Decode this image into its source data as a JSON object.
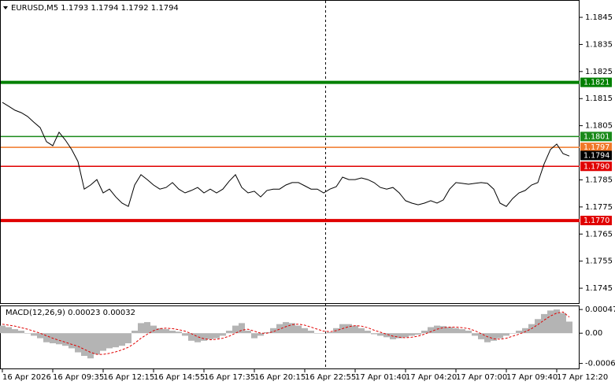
{
  "chart_data": [
    {
      "type": "line",
      "title": "EURUSD,M5  1.1793 1.1794 1.1792 1.1794",
      "color": "#000000",
      "categories": [
        "16 Apr 2026",
        null,
        null,
        null,
        null,
        null,
        null,
        null,
        "16 Apr 09:35",
        null,
        null,
        null,
        null,
        null,
        null,
        null,
        "16 Apr 12:15",
        null,
        null,
        null,
        null,
        null,
        null,
        null,
        "16 Apr 14:55",
        null,
        null,
        null,
        null,
        null,
        null,
        null,
        "16 Apr 17:35",
        null,
        null,
        null,
        null,
        null,
        null,
        null,
        "16 Apr 20:15",
        null,
        null,
        null,
        null,
        null,
        null,
        null,
        "16 Apr 22:55",
        null,
        null,
        null,
        null,
        null,
        null,
        null,
        "17 Apr 01:40",
        null,
        null,
        null,
        null,
        null,
        null,
        null,
        "17 Apr 04:20",
        null,
        null,
        null,
        null,
        null,
        null,
        null,
        "17 Apr 07:00",
        null,
        null,
        null,
        null,
        null,
        null,
        null,
        "17 Apr 09:40",
        null,
        null,
        null,
        null,
        null,
        null,
        null,
        "17 Apr 12:20",
        null,
        null
      ],
      "values": [
        1.18136,
        1.18122,
        1.18107,
        1.18098,
        1.18084,
        1.18063,
        1.18043,
        1.17991,
        1.17976,
        1.18026,
        1.17997,
        1.17962,
        1.17918,
        1.17816,
        1.17831,
        1.17851,
        1.17802,
        1.17816,
        1.17787,
        1.17764,
        1.17752,
        1.17831,
        1.17869,
        1.17851,
        1.17831,
        1.17816,
        1.17822,
        1.1784,
        1.17816,
        1.17802,
        1.17811,
        1.17822,
        1.17802,
        1.17816,
        1.17802,
        1.17816,
        1.17845,
        1.17869,
        1.17822,
        1.17802,
        1.17808,
        1.17787,
        1.17811,
        1.17816,
        1.17816,
        1.17831,
        1.1784,
        1.1784,
        1.17828,
        1.17816,
        1.17816,
        1.17802,
        1.17816,
        1.17825,
        1.1786,
        1.17851,
        1.17851,
        1.17857,
        1.17851,
        1.1784,
        1.17822,
        1.17816,
        1.17822,
        1.17802,
        1.17773,
        1.17764,
        1.17758,
        1.17764,
        1.17773,
        1.17764,
        1.17776,
        1.17816,
        1.1784,
        1.17837,
        1.17834,
        1.17837,
        1.1784,
        1.17837,
        1.17816,
        1.17764,
        1.17752,
        1.17781,
        1.17802,
        1.17811,
        1.17831,
        1.1784,
        1.17909,
        1.17962,
        1.17982,
        1.17947,
        1.17938
      ],
      "ylim": [
        1.17395,
        1.18514
      ],
      "yticks": [
        1.1845,
        1.1835,
        1.1825,
        1.1815,
        1.1805,
        1.1785,
        1.1775,
        1.1765,
        1.1755,
        1.1745
      ],
      "levels": [
        {
          "value": 1.1821,
          "label": "1.1821",
          "color": "#008000"
        },
        {
          "value": 1.1801,
          "label": "1.1801",
          "color": "#1a8a1a"
        },
        {
          "value": 1.1797,
          "label": "1.1797",
          "color": "#f07828"
        },
        {
          "value": 1.179,
          "label": "1.1790",
          "color": "#e00000"
        },
        {
          "value": 1.177,
          "label": "1.1770",
          "color": "#e00000"
        }
      ],
      "last_price": 1.1794
    },
    {
      "type": "macd",
      "title": "MACD(12,26,9) 0.00023 0.00032",
      "series": [
        {
          "name": "MACD",
          "color": "#b4b4b4",
          "values": [
            0.00015,
            0.00012,
            8e-05,
            5e-05,
            0,
            -5e-05,
            -0.0001,
            -0.00018,
            -0.0002,
            -0.00022,
            -0.00025,
            -0.0003,
            -0.00038,
            -0.00045,
            -0.0005,
            -0.00042,
            -0.00035,
            -0.0003,
            -0.00028,
            -0.00025,
            -0.0002,
            5e-05,
            0.0002,
            0.00022,
            0.00015,
            0.0001,
            8e-05,
            5e-05,
            3e-05,
            -5e-05,
            -0.00015,
            -0.00018,
            -0.00015,
            -0.00012,
            -0.0001,
            -5e-05,
            5e-05,
            0.00015,
            0.0002,
            5e-05,
            -0.0001,
            -5e-05,
            2e-05,
            0.0001,
            0.00018,
            0.00022,
            0.0002,
            0.00015,
            0.0001,
            5e-05,
            0,
            0,
            2e-05,
            0.0001,
            0.00018,
            0.00018,
            0.00015,
            0.0001,
            5e-05,
            -2e-05,
            -5e-05,
            -8e-05,
            -0.00012,
            -0.0001,
            -8e-05,
            -5e-05,
            -3e-05,
            5e-05,
            0.00012,
            0.00015,
            0.00014,
            0.00012,
            0.0001,
            8e-05,
            5e-05,
            -5e-05,
            -0.00012,
            -0.00018,
            -0.00015,
            -0.0001,
            -5e-05,
            0,
            5e-05,
            0.0001,
            0.00018,
            0.00028,
            0.00038,
            0.00045,
            0.00047,
            0.0004,
            0.00023
          ]
        },
        {
          "name": "Signal",
          "color": "#e00000",
          "values": [
            0.00018,
            0.00016,
            0.00014,
            0.00011,
            8e-05,
            4e-05,
            0,
            -5e-05,
            -0.0001,
            -0.00014,
            -0.00018,
            -0.00022,
            -0.00026,
            -0.00032,
            -0.00038,
            -0.00042,
            -0.00042,
            -0.0004,
            -0.00037,
            -0.00033,
            -0.00028,
            -0.0002,
            -0.0001,
            -2e-05,
            5e-05,
            9e-05,
            0.0001,
            9e-05,
            7e-05,
            4e-05,
            -1e-05,
            -7e-05,
            -0.00011,
            -0.00013,
            -0.00012,
            -0.0001,
            -6e-05,
            0,
            6e-05,
            8e-05,
            4e-05,
            0,
            0,
            3e-05,
            8e-05,
            0.00013,
            0.00017,
            0.00018,
            0.00016,
            0.00012,
            8e-05,
            4e-05,
            3e-05,
            5e-05,
            9e-05,
            0.00013,
            0.00015,
            0.00014,
            0.00011,
            6e-05,
            2e-05,
            -2e-05,
            -6e-05,
            -8e-05,
            -9e-05,
            -8e-05,
            -6e-05,
            -2e-05,
            3e-05,
            8e-05,
            0.00011,
            0.00012,
            0.00012,
            0.00011,
            9e-05,
            5e-05,
            -1e-05,
            -7e-05,
            -0.00011,
            -0.00012,
            -0.0001,
            -6e-05,
            -2e-05,
            3e-05,
            9e-05,
            0.00017,
            0.00026,
            0.00034,
            0.0004,
            0.00042,
            0.00032
          ]
        }
      ],
      "ylim": [
        -0.0007,
        0.00055
      ],
      "yticks": [
        0.00047,
        {
          "value": 0,
          "label": "0.00"
        },
        -0.0006
      ]
    }
  ]
}
